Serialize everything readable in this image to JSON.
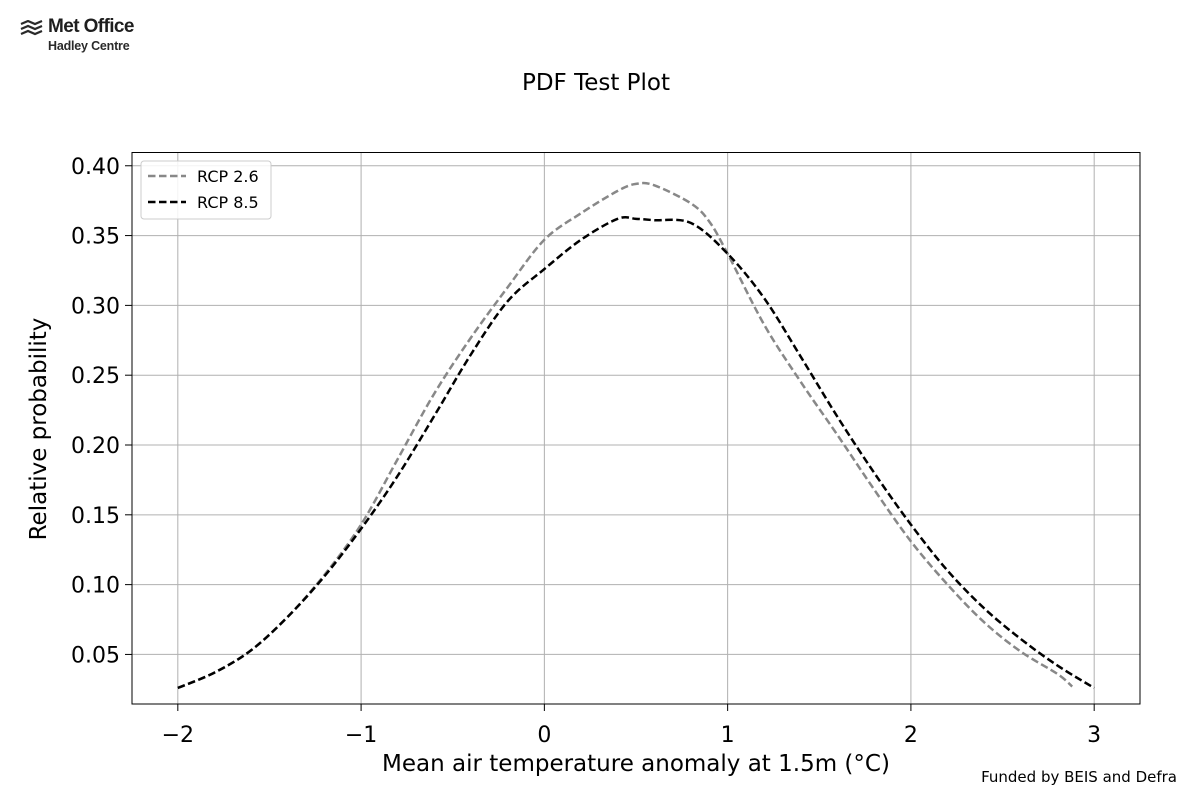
{
  "logo": {
    "line1": "Met Office",
    "line2": "Hadley Centre"
  },
  "footer": {
    "credit": "Funded by BEIS and Defra"
  },
  "chart_data": {
    "type": "line",
    "title": "PDF Test Plot",
    "xlabel": "Mean air temperature anomaly at 1.5m (°C)",
    "ylabel": "Relative probability",
    "xlim": [
      -2.25,
      3.25
    ],
    "ylim": [
      0.0145,
      0.4095
    ],
    "xticks": [
      -2,
      -1,
      0,
      1,
      2,
      3
    ],
    "xtick_labels": [
      "−2",
      "−1",
      "0",
      "1",
      "2",
      "3"
    ],
    "yticks": [
      0.05,
      0.1,
      0.15,
      0.2,
      0.25,
      0.3,
      0.35,
      0.4
    ],
    "ytick_labels": [
      "0.05",
      "0.10",
      "0.15",
      "0.20",
      "0.25",
      "0.30",
      "0.35",
      "0.40"
    ],
    "grid": true,
    "legend_position": "upper-left",
    "series": [
      {
        "name": "RCP 2.6",
        "color": "#888888",
        "linestyle": "dashed",
        "x": [
          -2.0,
          -1.8,
          -1.6,
          -1.4,
          -1.2,
          -1.0,
          -0.8,
          -0.6,
          -0.4,
          -0.2,
          0.0,
          0.2,
          0.4,
          0.5,
          0.6,
          0.8,
          0.9,
          1.0,
          1.2,
          1.4,
          1.6,
          1.8,
          2.0,
          2.2,
          2.4,
          2.6,
          2.8,
          2.88
        ],
        "y": [
          0.026,
          0.037,
          0.053,
          0.077,
          0.107,
          0.143,
          0.19,
          0.237,
          0.277,
          0.313,
          0.347,
          0.366,
          0.382,
          0.387,
          0.386,
          0.373,
          0.36,
          0.337,
          0.286,
          0.245,
          0.207,
          0.168,
          0.131,
          0.1,
          0.073,
          0.052,
          0.036,
          0.027
        ]
      },
      {
        "name": "RCP 8.5",
        "color": "#000000",
        "linestyle": "dashed",
        "x": [
          -2.0,
          -1.8,
          -1.6,
          -1.4,
          -1.2,
          -1.0,
          -0.8,
          -0.6,
          -0.4,
          -0.2,
          0.0,
          0.2,
          0.4,
          0.5,
          0.6,
          0.8,
          1.0,
          1.2,
          1.4,
          1.6,
          1.8,
          2.0,
          2.2,
          2.4,
          2.6,
          2.8,
          3.0
        ],
        "y": [
          0.026,
          0.037,
          0.053,
          0.077,
          0.106,
          0.14,
          0.178,
          0.221,
          0.265,
          0.303,
          0.326,
          0.347,
          0.362,
          0.362,
          0.361,
          0.359,
          0.337,
          0.305,
          0.263,
          0.22,
          0.18,
          0.143,
          0.11,
          0.083,
          0.061,
          0.042,
          0.026
        ]
      }
    ]
  }
}
